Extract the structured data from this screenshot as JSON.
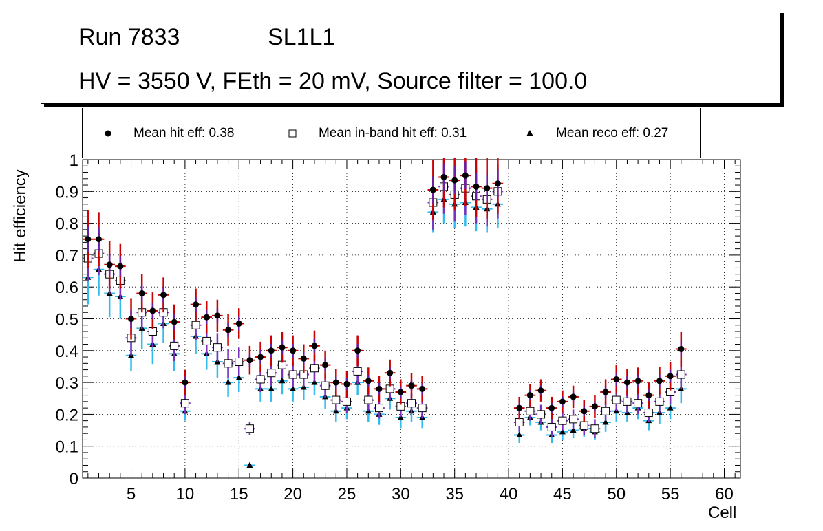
{
  "header": {
    "run": "Run 7833",
    "layer": "SL1L1",
    "conditions": "HV = 3550 V, FEth = 20 mV, Source filter = 100.0"
  },
  "legend": {
    "hit": "Mean hit  eff: 0.38",
    "inband": "Mean in-band hit eff: 0.31",
    "reco": "Mean reco eff: 0.27"
  },
  "colors": {
    "hit_err": "#cc0000",
    "hit_err_inner": "#6a1fa8",
    "inband_err": "#7b2fbf",
    "reco_err": "#33bbee",
    "marker": "#000000"
  },
  "chart_data": {
    "type": "scatter",
    "title": "",
    "xlabel": "Cell",
    "ylabel": "Hit efficiency",
    "xlim": [
      0.5,
      61.5
    ],
    "ylim": [
      0,
      1
    ],
    "x_ticks": [
      5,
      10,
      15,
      20,
      25,
      30,
      35,
      40,
      45,
      50,
      55,
      60
    ],
    "y_ticks": [
      0,
      0.1,
      0.2,
      0.3,
      0.4,
      0.5,
      0.6,
      0.7,
      0.8,
      0.9,
      1
    ],
    "y_tick_labels": [
      "0",
      "0.1",
      "0.2",
      "0.3",
      "0.4",
      "0.5",
      "0.6",
      "0.7",
      "0.8",
      "0.9",
      "1"
    ],
    "grid": true,
    "series": [
      {
        "name": "Mean hit eff",
        "marker": "circle",
        "x": [
          1,
          2,
          3,
          4,
          5,
          6,
          7,
          8,
          9,
          10,
          11,
          12,
          13,
          14,
          15,
          16,
          17,
          18,
          19,
          20,
          21,
          22,
          23,
          24,
          25,
          26,
          27,
          28,
          29,
          30,
          31,
          32,
          33,
          34,
          35,
          36,
          37,
          38,
          39,
          41,
          42,
          43,
          44,
          45,
          46,
          47,
          48,
          49,
          50,
          51,
          52,
          53,
          54,
          55,
          56
        ],
        "values": [
          0.75,
          0.75,
          0.67,
          0.665,
          0.5,
          0.58,
          0.525,
          0.575,
          0.49,
          0.3,
          0.545,
          0.505,
          0.51,
          0.465,
          0.485,
          0.37,
          0.38,
          0.4,
          0.41,
          0.4,
          0.375,
          0.415,
          0.355,
          0.3,
          0.295,
          0.4,
          0.305,
          0.28,
          0.33,
          0.27,
          0.29,
          0.28,
          0.905,
          0.945,
          0.935,
          0.95,
          0.915,
          0.91,
          0.925,
          0.22,
          0.26,
          0.275,
          0.22,
          0.24,
          0.255,
          0.21,
          0.225,
          0.27,
          0.31,
          0.3,
          0.305,
          0.26,
          0.305,
          0.32,
          0.405
        ],
        "errors": [
          0.09,
          0.085,
          0.075,
          0.07,
          0.065,
          0.06,
          0.058,
          0.055,
          0.055,
          0.04,
          0.05,
          0.05,
          0.05,
          0.05,
          0.048,
          0.045,
          0.048,
          0.048,
          0.048,
          0.048,
          0.045,
          0.048,
          0.045,
          0.042,
          0.042,
          0.048,
          0.042,
          0.04,
          0.042,
          0.04,
          0.04,
          0.04,
          0.095,
          0.095,
          0.095,
          0.095,
          0.095,
          0.095,
          0.095,
          0.035,
          0.035,
          0.035,
          0.035,
          0.035,
          0.035,
          0.035,
          0.035,
          0.04,
          0.045,
          0.042,
          0.042,
          0.04,
          0.045,
          0.045,
          0.055
        ]
      },
      {
        "name": "Mean in-band hit eff",
        "marker": "open-square",
        "x": [
          1,
          2,
          3,
          4,
          5,
          6,
          7,
          8,
          9,
          10,
          11,
          12,
          13,
          14,
          15,
          16,
          17,
          18,
          19,
          20,
          21,
          22,
          23,
          24,
          25,
          26,
          27,
          28,
          29,
          30,
          31,
          32,
          33,
          34,
          35,
          36,
          37,
          38,
          39,
          41,
          42,
          43,
          44,
          45,
          46,
          47,
          48,
          49,
          50,
          51,
          52,
          53,
          54,
          55,
          56
        ],
        "values": [
          0.69,
          0.705,
          0.64,
          0.62,
          0.44,
          0.52,
          0.46,
          0.52,
          0.415,
          0.235,
          0.48,
          0.43,
          0.41,
          0.36,
          0.365,
          0.155,
          0.31,
          0.33,
          0.355,
          0.325,
          0.325,
          0.345,
          0.29,
          0.245,
          0.24,
          0.335,
          0.245,
          0.22,
          0.28,
          0.225,
          0.235,
          0.22,
          0.865,
          0.915,
          0.89,
          0.91,
          0.885,
          0.875,
          0.9,
          0.175,
          0.21,
          0.2,
          0.16,
          0.18,
          0.185,
          0.165,
          0.155,
          0.21,
          0.245,
          0.24,
          0.235,
          0.205,
          0.24,
          0.27,
          0.325
        ],
        "errors": [
          0.07,
          0.068,
          0.062,
          0.06,
          0.055,
          0.052,
          0.05,
          0.05,
          0.048,
          0.035,
          0.048,
          0.045,
          0.045,
          0.045,
          0.045,
          0.02,
          0.04,
          0.04,
          0.042,
          0.04,
          0.04,
          0.042,
          0.038,
          0.035,
          0.035,
          0.04,
          0.035,
          0.033,
          0.035,
          0.033,
          0.033,
          0.033,
          0.085,
          0.085,
          0.085,
          0.085,
          0.085,
          0.085,
          0.085,
          0.03,
          0.03,
          0.03,
          0.03,
          0.03,
          0.03,
          0.03,
          0.03,
          0.03,
          0.035,
          0.035,
          0.035,
          0.03,
          0.035,
          0.038,
          0.045
        ]
      },
      {
        "name": "Mean reco eff",
        "marker": "triangle",
        "x": [
          1,
          2,
          3,
          4,
          5,
          6,
          7,
          8,
          9,
          10,
          11,
          12,
          13,
          14,
          15,
          16,
          17,
          18,
          19,
          20,
          21,
          22,
          23,
          24,
          25,
          26,
          27,
          28,
          29,
          30,
          31,
          32,
          33,
          34,
          35,
          36,
          37,
          38,
          39,
          41,
          42,
          43,
          44,
          45,
          46,
          47,
          48,
          49,
          50,
          51,
          52,
          53,
          54,
          55,
          56
        ],
        "values": [
          0.63,
          0.655,
          0.58,
          0.57,
          0.385,
          0.47,
          0.42,
          0.485,
          0.39,
          0.21,
          0.445,
          0.39,
          0.365,
          0.3,
          0.315,
          0.04,
          0.28,
          0.28,
          0.305,
          0.28,
          0.285,
          0.3,
          0.255,
          0.21,
          0.22,
          0.3,
          0.21,
          0.2,
          0.25,
          0.19,
          0.21,
          0.19,
          0.835,
          0.875,
          0.86,
          0.865,
          0.85,
          0.845,
          0.86,
          0.135,
          0.19,
          0.175,
          0.135,
          0.145,
          0.15,
          0.155,
          0.145,
          0.175,
          0.21,
          0.205,
          0.22,
          0.18,
          0.205,
          0.22,
          0.28
        ],
        "errors": [
          0.085,
          0.082,
          0.075,
          0.07,
          0.05,
          0.065,
          0.062,
          0.06,
          0.055,
          0.03,
          0.055,
          0.05,
          0.05,
          0.045,
          0.045,
          0.005,
          0.04,
          0.04,
          0.042,
          0.04,
          0.04,
          0.04,
          0.038,
          0.035,
          0.035,
          0.04,
          0.035,
          0.033,
          0.035,
          0.033,
          0.033,
          0.033,
          0.065,
          0.075,
          0.075,
          0.075,
          0.075,
          0.075,
          0.075,
          0.025,
          0.025,
          0.025,
          0.025,
          0.025,
          0.025,
          0.025,
          0.025,
          0.03,
          0.035,
          0.03,
          0.035,
          0.03,
          0.035,
          0.035,
          0.045
        ]
      }
    ]
  }
}
